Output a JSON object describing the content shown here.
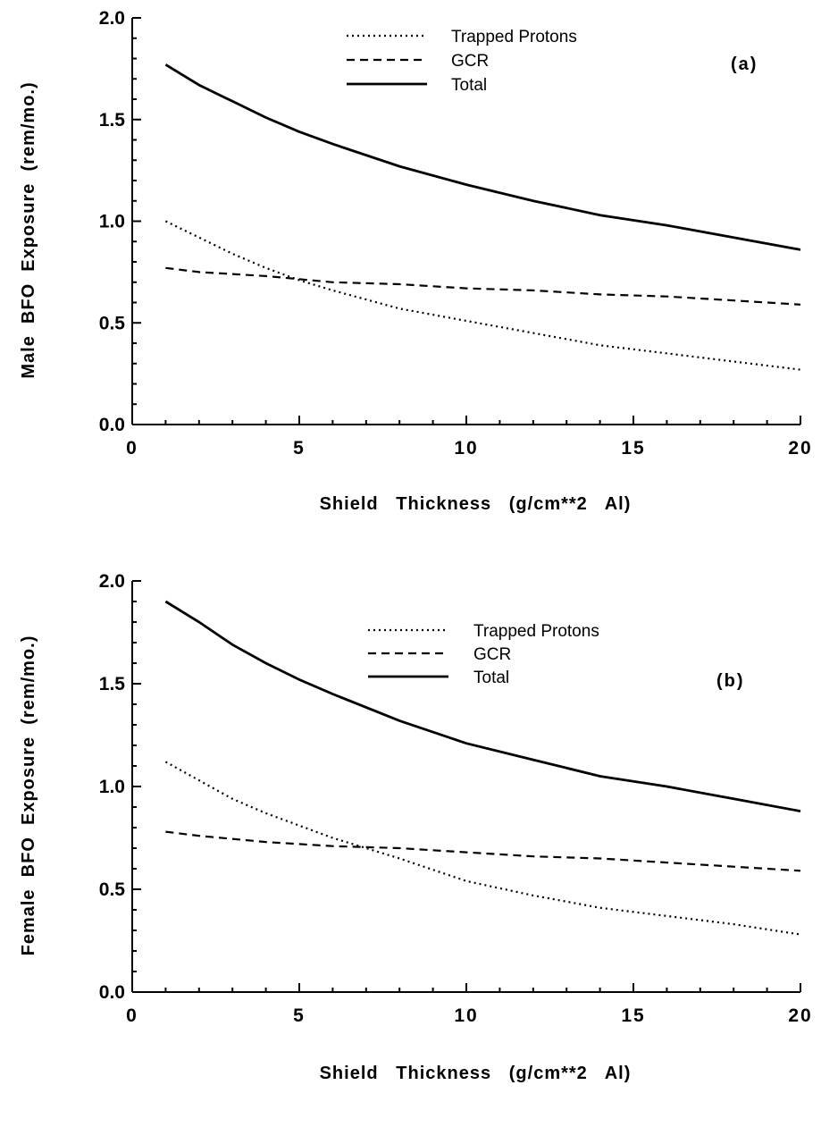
{
  "chart_data": [
    {
      "type": "line",
      "panel_label": "(a)",
      "xlabel": "Shield   Thickness   (g/cm**2   Al)",
      "ylabel": "Male  BFO  Exposure  (rem/mo.)",
      "xlim": [
        0,
        20
      ],
      "ylim": [
        0,
        2.0
      ],
      "xticks": [
        "0",
        "5",
        "10",
        "15",
        "20"
      ],
      "yticks": [
        "0.0",
        "0.5",
        "1.0",
        "1.5",
        "2.0"
      ],
      "legend_position": "top-center",
      "series": [
        {
          "name": "Trapped Protons",
          "style": "dotted",
          "x": [
            1,
            2,
            3,
            4,
            5,
            6,
            8,
            10,
            12,
            14,
            16,
            18,
            20
          ],
          "y": [
            1.0,
            0.92,
            0.84,
            0.77,
            0.71,
            0.66,
            0.57,
            0.51,
            0.45,
            0.39,
            0.35,
            0.31,
            0.27
          ]
        },
        {
          "name": "GCR",
          "style": "dashed",
          "x": [
            1,
            2,
            4,
            6,
            8,
            10,
            12,
            14,
            16,
            18,
            20
          ],
          "y": [
            0.77,
            0.75,
            0.73,
            0.7,
            0.69,
            0.67,
            0.66,
            0.64,
            0.63,
            0.61,
            0.59
          ]
        },
        {
          "name": "Total",
          "style": "solid",
          "x": [
            1,
            2,
            3,
            4,
            5,
            6,
            8,
            10,
            12,
            14,
            16,
            18,
            20
          ],
          "y": [
            1.77,
            1.67,
            1.59,
            1.51,
            1.44,
            1.38,
            1.27,
            1.18,
            1.1,
            1.03,
            0.98,
            0.92,
            0.86
          ]
        }
      ]
    },
    {
      "type": "line",
      "panel_label": "(b)",
      "xlabel": "Shield   Thickness   (g/cm**2   Al)",
      "ylabel": "Female  BFO  Exposure  (rem/mo.)",
      "xlim": [
        0,
        20
      ],
      "ylim": [
        0,
        2.0
      ],
      "xticks": [
        "0",
        "5",
        "10",
        "15",
        "20"
      ],
      "yticks": [
        "0.0",
        "0.5",
        "1.0",
        "1.5",
        "2.0"
      ],
      "legend_position": "top-center",
      "series": [
        {
          "name": "Trapped Protons",
          "style": "dotted",
          "x": [
            1,
            2,
            3,
            4,
            5,
            6,
            7,
            8,
            10,
            12,
            14,
            16,
            18,
            20
          ],
          "y": [
            1.12,
            1.03,
            0.94,
            0.87,
            0.81,
            0.75,
            0.7,
            0.65,
            0.54,
            0.47,
            0.41,
            0.37,
            0.33,
            0.28
          ]
        },
        {
          "name": "GCR",
          "style": "dashed",
          "x": [
            1,
            2,
            4,
            6,
            8,
            10,
            12,
            14,
            16,
            18,
            20
          ],
          "y": [
            0.78,
            0.76,
            0.73,
            0.71,
            0.7,
            0.68,
            0.66,
            0.65,
            0.63,
            0.61,
            0.59
          ]
        },
        {
          "name": "Total",
          "style": "solid",
          "x": [
            1,
            2,
            3,
            4,
            5,
            6,
            8,
            10,
            12,
            14,
            16,
            18,
            20
          ],
          "y": [
            1.9,
            1.8,
            1.69,
            1.6,
            1.52,
            1.45,
            1.32,
            1.21,
            1.13,
            1.05,
            1.0,
            0.94,
            0.88
          ]
        }
      ]
    }
  ]
}
